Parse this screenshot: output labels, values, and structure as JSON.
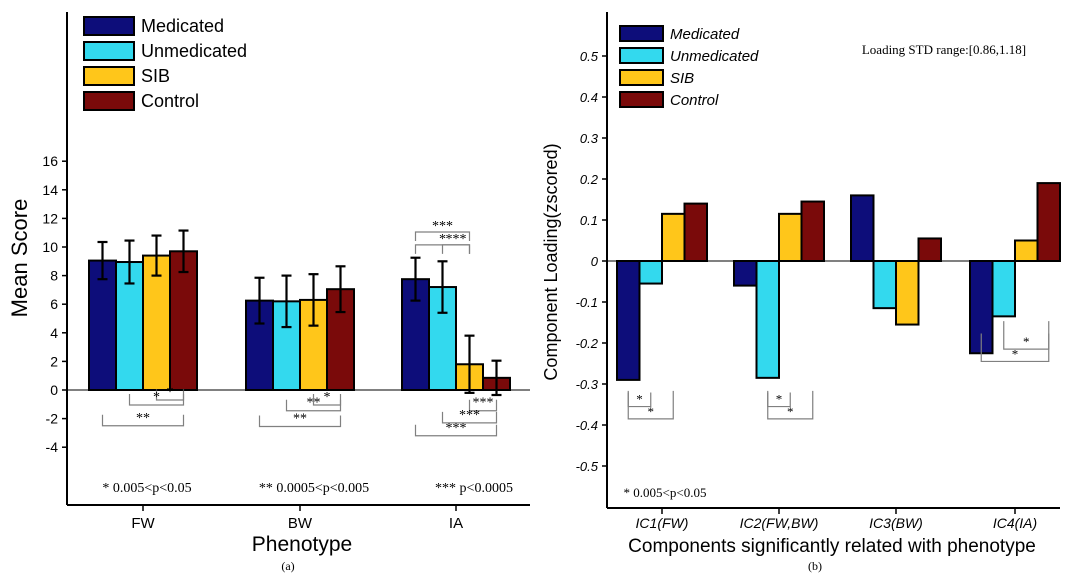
{
  "colors": {
    "Medicated": "#0d0d7a",
    "Unmedicated": "#33d9ee",
    "SIB": "#ffc61a",
    "Control": "#7a0a0a",
    "bar_edge": "#000000",
    "sig_line": "#808080"
  },
  "chart_data": [
    {
      "type": "bar",
      "panel_label": "(a)",
      "xlabel": "Phenotype",
      "ylabel": "Mean Score",
      "categories": [
        "FW",
        "BW",
        "IA"
      ],
      "ylim": [
        -5,
        16.5
      ],
      "yticks": [
        -4,
        -2,
        0,
        2,
        4,
        6,
        8,
        10,
        12,
        14,
        16
      ],
      "grid": false,
      "legend_position": "top-left",
      "series": [
        {
          "name": "Medicated",
          "values": [
            9.05,
            6.25,
            7.75
          ],
          "err": [
            1.3,
            1.6,
            1.5
          ]
        },
        {
          "name": "Unmedicated",
          "values": [
            8.95,
            6.2,
            7.2
          ],
          "err": [
            1.5,
            1.8,
            1.8
          ]
        },
        {
          "name": "SIB",
          "values": [
            9.4,
            6.3,
            1.8
          ],
          "err": [
            1.4,
            1.8,
            2.0
          ]
        },
        {
          "name": "Control",
          "values": [
            9.7,
            7.05,
            0.85
          ],
          "err": [
            1.45,
            1.6,
            1.2
          ]
        }
      ],
      "significance": [
        {
          "category": 0,
          "from": 2,
          "to": 3,
          "label": "*",
          "y": -0.7,
          "dir": "down"
        },
        {
          "category": 0,
          "from": 1,
          "to": 3,
          "label": "*",
          "y": -1.05,
          "dir": "down"
        },
        {
          "category": 0,
          "from": 0,
          "to": 3,
          "label": "**",
          "y": -2.5,
          "dir": "down"
        },
        {
          "category": 1,
          "from": 2,
          "to": 3,
          "label": "*",
          "y": -1.05,
          "dir": "down"
        },
        {
          "category": 1,
          "from": 1,
          "to": 3,
          "label": "**",
          "y": -1.45,
          "dir": "down"
        },
        {
          "category": 1,
          "from": 0,
          "to": 3,
          "label": "**",
          "y": -2.55,
          "dir": "down"
        },
        {
          "category": 2,
          "from": 0,
          "to": 2,
          "label": "*",
          "y": 10.15,
          "dir": "up"
        },
        {
          "category": 2,
          "from": 1,
          "to": 2,
          "label": "***",
          "y": 10.15,
          "dir": "up"
        },
        {
          "category": 2,
          "from": 0,
          "to": 2,
          "label": "***",
          "y": 11.05,
          "dir": "up"
        },
        {
          "category": 2,
          "from": 2,
          "to": 3,
          "label": "***",
          "y": -1.45,
          "dir": "down"
        },
        {
          "category": 2,
          "from": 1,
          "to": 3,
          "label": "***",
          "y": -2.3,
          "dir": "down"
        },
        {
          "category": 2,
          "from": 0,
          "to": 3,
          "label": "***",
          "y": -3.2,
          "dir": "down"
        }
      ],
      "annotations": [
        "* 0.005<p<0.05",
        "** 0.0005<p<0.005",
        "*** p<0.0005"
      ]
    },
    {
      "type": "bar",
      "panel_label": "(b)",
      "xlabel": "Components significantly related with phenotype",
      "ylabel": "Component Loading(zscored)",
      "categories": [
        "IC1(FW)",
        "IC2(FW,BW)",
        "IC3(BW)",
        "IC4(IA)"
      ],
      "ylim": [
        -0.55,
        0.58
      ],
      "yticks": [
        -0.5,
        -0.4,
        -0.3,
        -0.2,
        -0.1,
        0,
        0.1,
        0.2,
        0.3,
        0.4,
        0.5
      ],
      "ytick_labels": [
        "-0.5",
        "-0.4",
        "-0.3",
        "-0.2",
        "-0.1",
        "0",
        "0.1",
        "0.2",
        "0.3",
        "0.4",
        "0.5"
      ],
      "grid": false,
      "legend_position": "top-left",
      "series": [
        {
          "name": "Medicated",
          "values": [
            -0.29,
            -0.06,
            0.16,
            -0.225
          ]
        },
        {
          "name": "Unmedicated",
          "values": [
            -0.055,
            -0.285,
            -0.115,
            -0.135
          ]
        },
        {
          "name": "SIB",
          "values": [
            0.115,
            0.115,
            -0.155,
            0.05
          ]
        },
        {
          "name": "Control",
          "values": [
            0.14,
            0.145,
            0.055,
            0.19
          ]
        }
      ],
      "significance": [
        {
          "category": 0,
          "from": 0,
          "to": 1,
          "label": "*",
          "y": -0.355
        },
        {
          "category": 0,
          "from": 0,
          "to": 2,
          "label": "*",
          "y": -0.385
        },
        {
          "category": 1,
          "from": 1,
          "to": 2,
          "label": "*",
          "y": -0.355
        },
        {
          "category": 1,
          "from": 1,
          "to": 3,
          "label": "*",
          "y": -0.385
        },
        {
          "category": 3,
          "from": 1,
          "to": 3,
          "label": "*",
          "y": -0.215
        },
        {
          "category": 3,
          "from": 0,
          "to": 3,
          "label": "*",
          "y": -0.245
        }
      ],
      "annotations": [
        "Loading STD range:[0.86,1.18]",
        "* 0.005<p<0.05"
      ]
    }
  ]
}
